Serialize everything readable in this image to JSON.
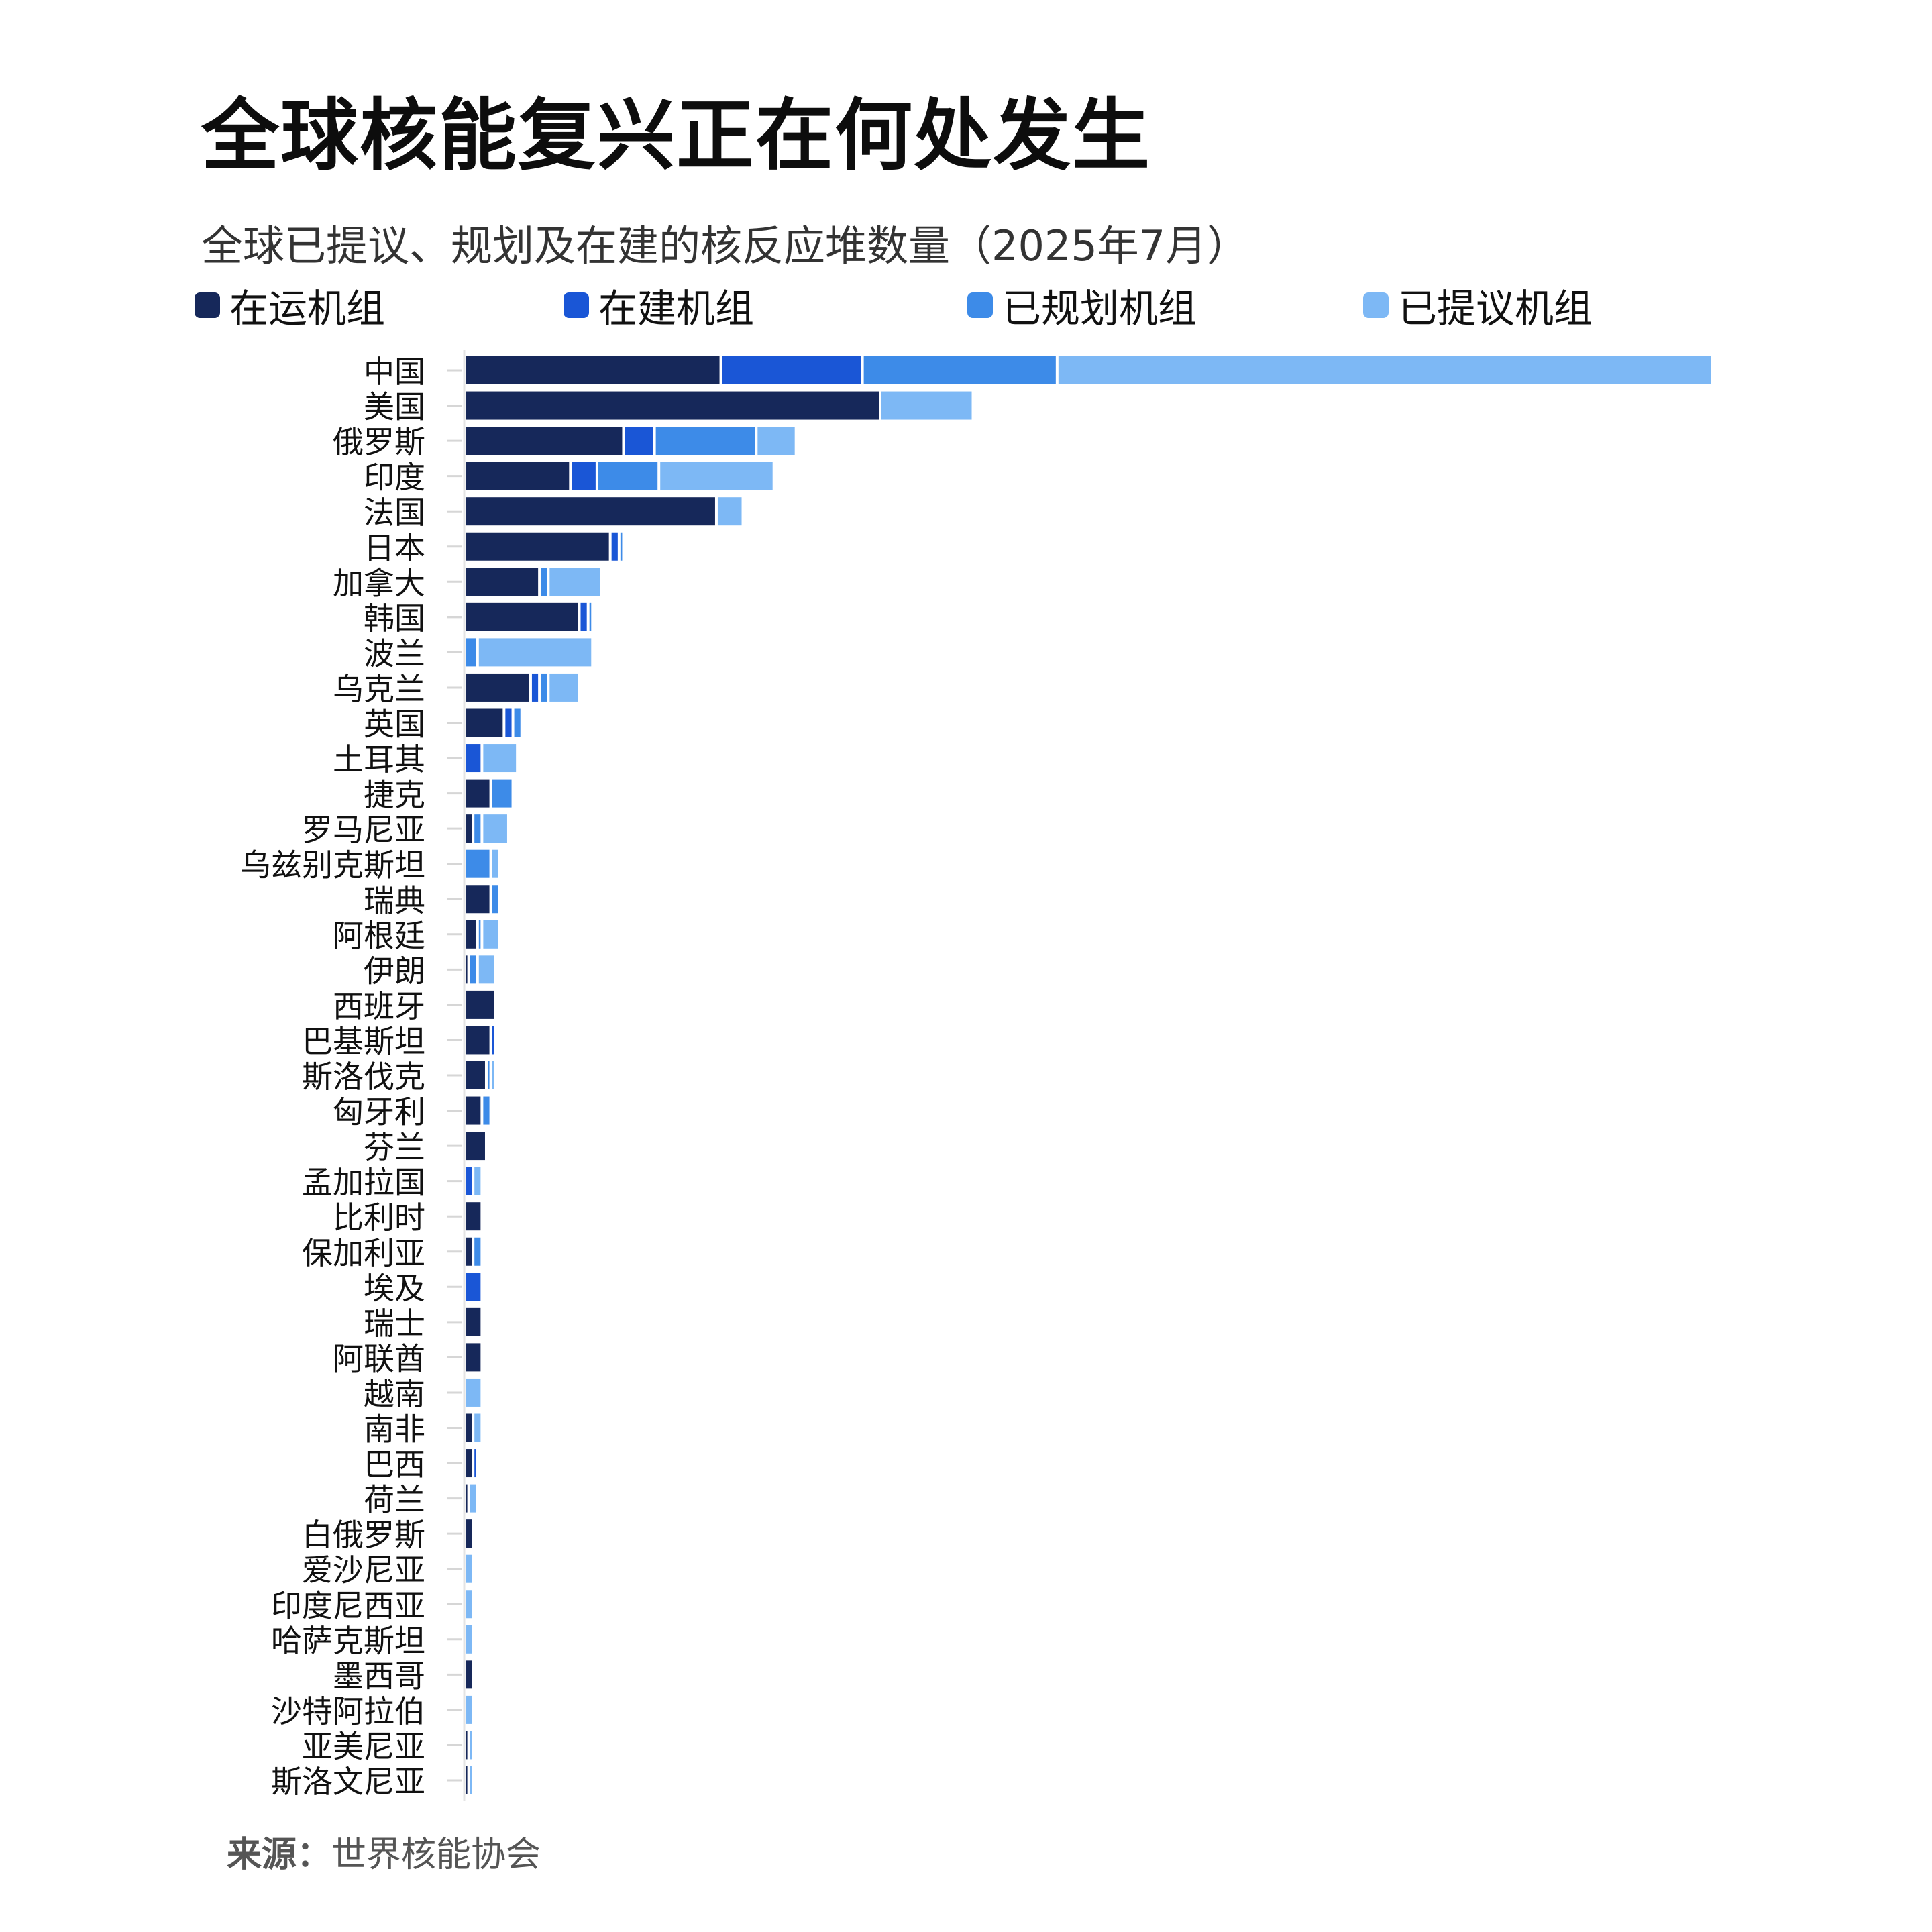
{
  "title": "全球核能复兴正在何处发生",
  "subtitle": "全球已提议、规划及在建的核反应堆数量（2025年7月）",
  "source": {
    "label": "来源：",
    "name": "世界核能协会"
  },
  "colors": {
    "operating": "#16285a",
    "construction": "#1a56d6",
    "planned": "#3d8be8",
    "proposed": "#7db8f5"
  },
  "chart_data": {
    "type": "bar",
    "orientation": "horizontal",
    "stacked": true,
    "legend_position": "top",
    "grid": false,
    "categories": [
      "中国",
      "美国",
      "俄罗斯",
      "印度",
      "法国",
      "日本",
      "加拿大",
      "韩国",
      "波兰",
      "乌克兰",
      "英国",
      "土耳其",
      "捷克",
      "罗马尼亚",
      "乌兹别克斯坦",
      "瑞典",
      "阿根廷",
      "伊朗",
      "西班牙",
      "巴基斯坦",
      "斯洛伐克",
      "匈牙利",
      "芬兰",
      "孟加拉国",
      "比利时",
      "保加利亚",
      "埃及",
      "瑞士",
      "阿联酋",
      "越南",
      "南非",
      "巴西",
      "荷兰",
      "白俄罗斯",
      "爱沙尼亚",
      "印度尼西亚",
      "哈萨克斯坦",
      "墨西哥",
      "沙特阿拉伯",
      "亚美尼亚",
      "斯洛文尼亚"
    ],
    "series": [
      {
        "key": "operating",
        "name": "在运机组",
        "values": [
          58,
          94,
          36,
          24,
          57,
          33,
          17,
          26,
          0,
          15,
          9,
          0,
          6,
          2,
          0,
          6,
          3,
          1,
          7,
          6,
          5,
          4,
          5,
          0,
          4,
          2,
          0,
          4,
          4,
          0,
          2,
          2,
          1,
          2,
          0,
          0,
          0,
          2,
          0,
          1,
          1
        ]
      },
      {
        "key": "construction",
        "name": "在建机组",
        "values": [
          32,
          0,
          7,
          6,
          0,
          2,
          0,
          2,
          0,
          2,
          2,
          4,
          0,
          0,
          0,
          0,
          0,
          0,
          0,
          1,
          0,
          0,
          0,
          2,
          0,
          0,
          4,
          0,
          0,
          0,
          0,
          1,
          0,
          0,
          0,
          0,
          0,
          0,
          0,
          0,
          0
        ]
      },
      {
        "key": "planned",
        "name": "已规划机组",
        "values": [
          44,
          0,
          23,
          14,
          0,
          1,
          2,
          1,
          3,
          2,
          2,
          0,
          5,
          2,
          6,
          2,
          1,
          2,
          0,
          0,
          1,
          2,
          0,
          0,
          0,
          2,
          0,
          0,
          0,
          0,
          0,
          0,
          0,
          0,
          0,
          0,
          0,
          0,
          0,
          0,
          0
        ]
      },
      {
        "key": "proposed",
        "name": "已提议机组",
        "values": [
          148,
          21,
          9,
          26,
          6,
          0,
          12,
          0,
          26,
          7,
          0,
          8,
          0,
          6,
          2,
          0,
          4,
          4,
          0,
          0,
          1,
          0,
          0,
          2,
          0,
          0,
          0,
          0,
          0,
          4,
          2,
          0,
          2,
          0,
          2,
          2,
          2,
          0,
          2,
          1,
          1
        ]
      }
    ]
  }
}
